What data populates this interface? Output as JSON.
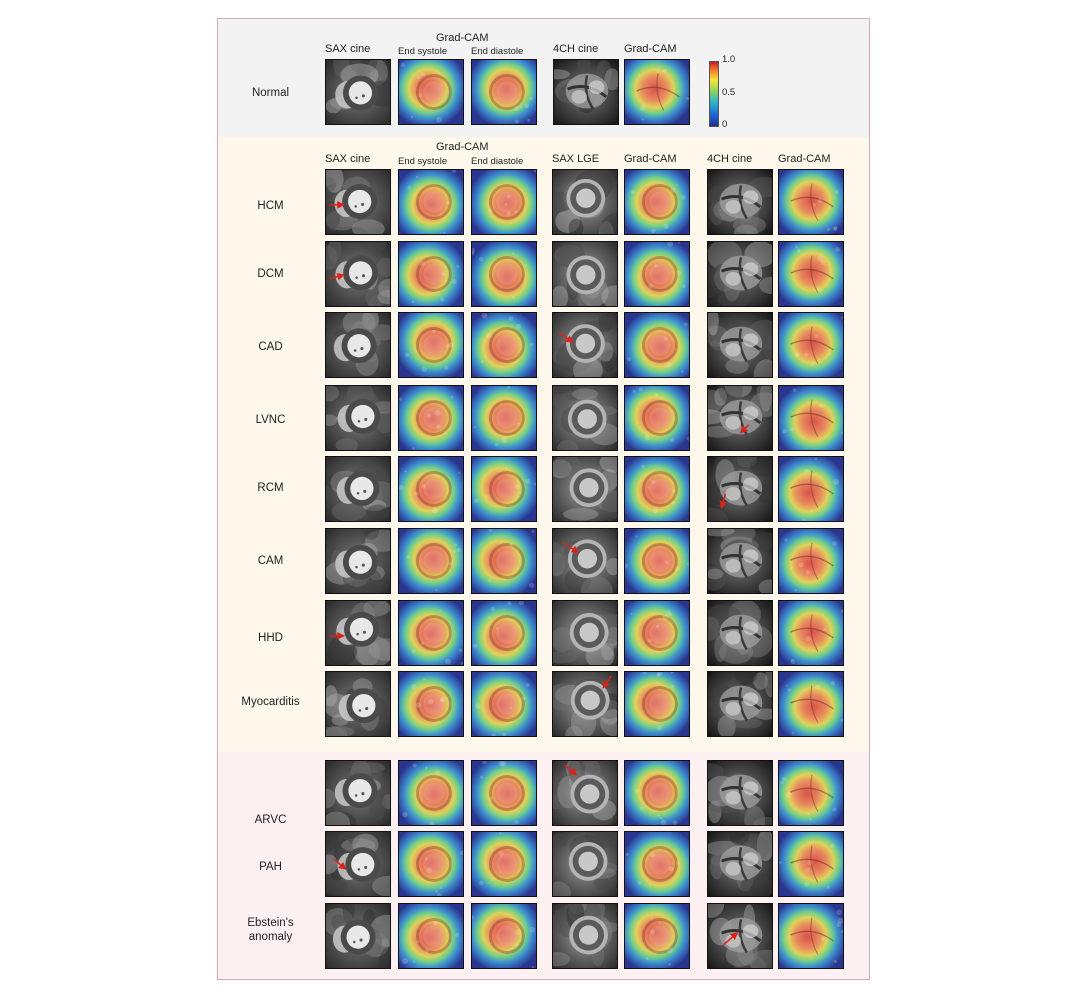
{
  "sections": {
    "normal": {
      "headers": {
        "sax_cine": "SAX cine",
        "gradcam": "Grad-CAM",
        "end_systole": "End systole",
        "end_diastole": "End diastole",
        "ch4_cine": "4CH cine",
        "gradcam2": "Grad-CAM"
      },
      "rows": [
        {
          "label": "Normal"
        }
      ],
      "colorbar": {
        "max": "1.0",
        "mid": "0.5",
        "min": "0"
      }
    },
    "lv": {
      "headers": {
        "sax_cine": "SAX cine",
        "gradcam": "Grad-CAM",
        "end_systole": "End systole",
        "end_diastole": "End diastole",
        "sax_lge": "SAX LGE",
        "gradcam_lge": "Grad-CAM",
        "ch4_cine": "4CH cine",
        "gradcam_4ch": "Grad-CAM"
      },
      "rows": [
        {
          "label": "HCM"
        },
        {
          "label": "DCM"
        },
        {
          "label": "CAD"
        },
        {
          "label": "LVNC"
        },
        {
          "label": "RCM"
        },
        {
          "label": "CAM"
        },
        {
          "label": "HHD"
        },
        {
          "label": "Myocarditis"
        }
      ]
    },
    "rv": {
      "rows": [
        {
          "label": "ARVC"
        },
        {
          "label": "PAH"
        },
        {
          "label": "Ebstein's anomaly"
        }
      ]
    }
  },
  "colors": {
    "border": "#d3a9ba",
    "normal_bg": "#f3f3f3",
    "lv_bg": "#fdf8eb",
    "rv_bg": "#fcf0f0",
    "arrow": "#d9241c"
  }
}
